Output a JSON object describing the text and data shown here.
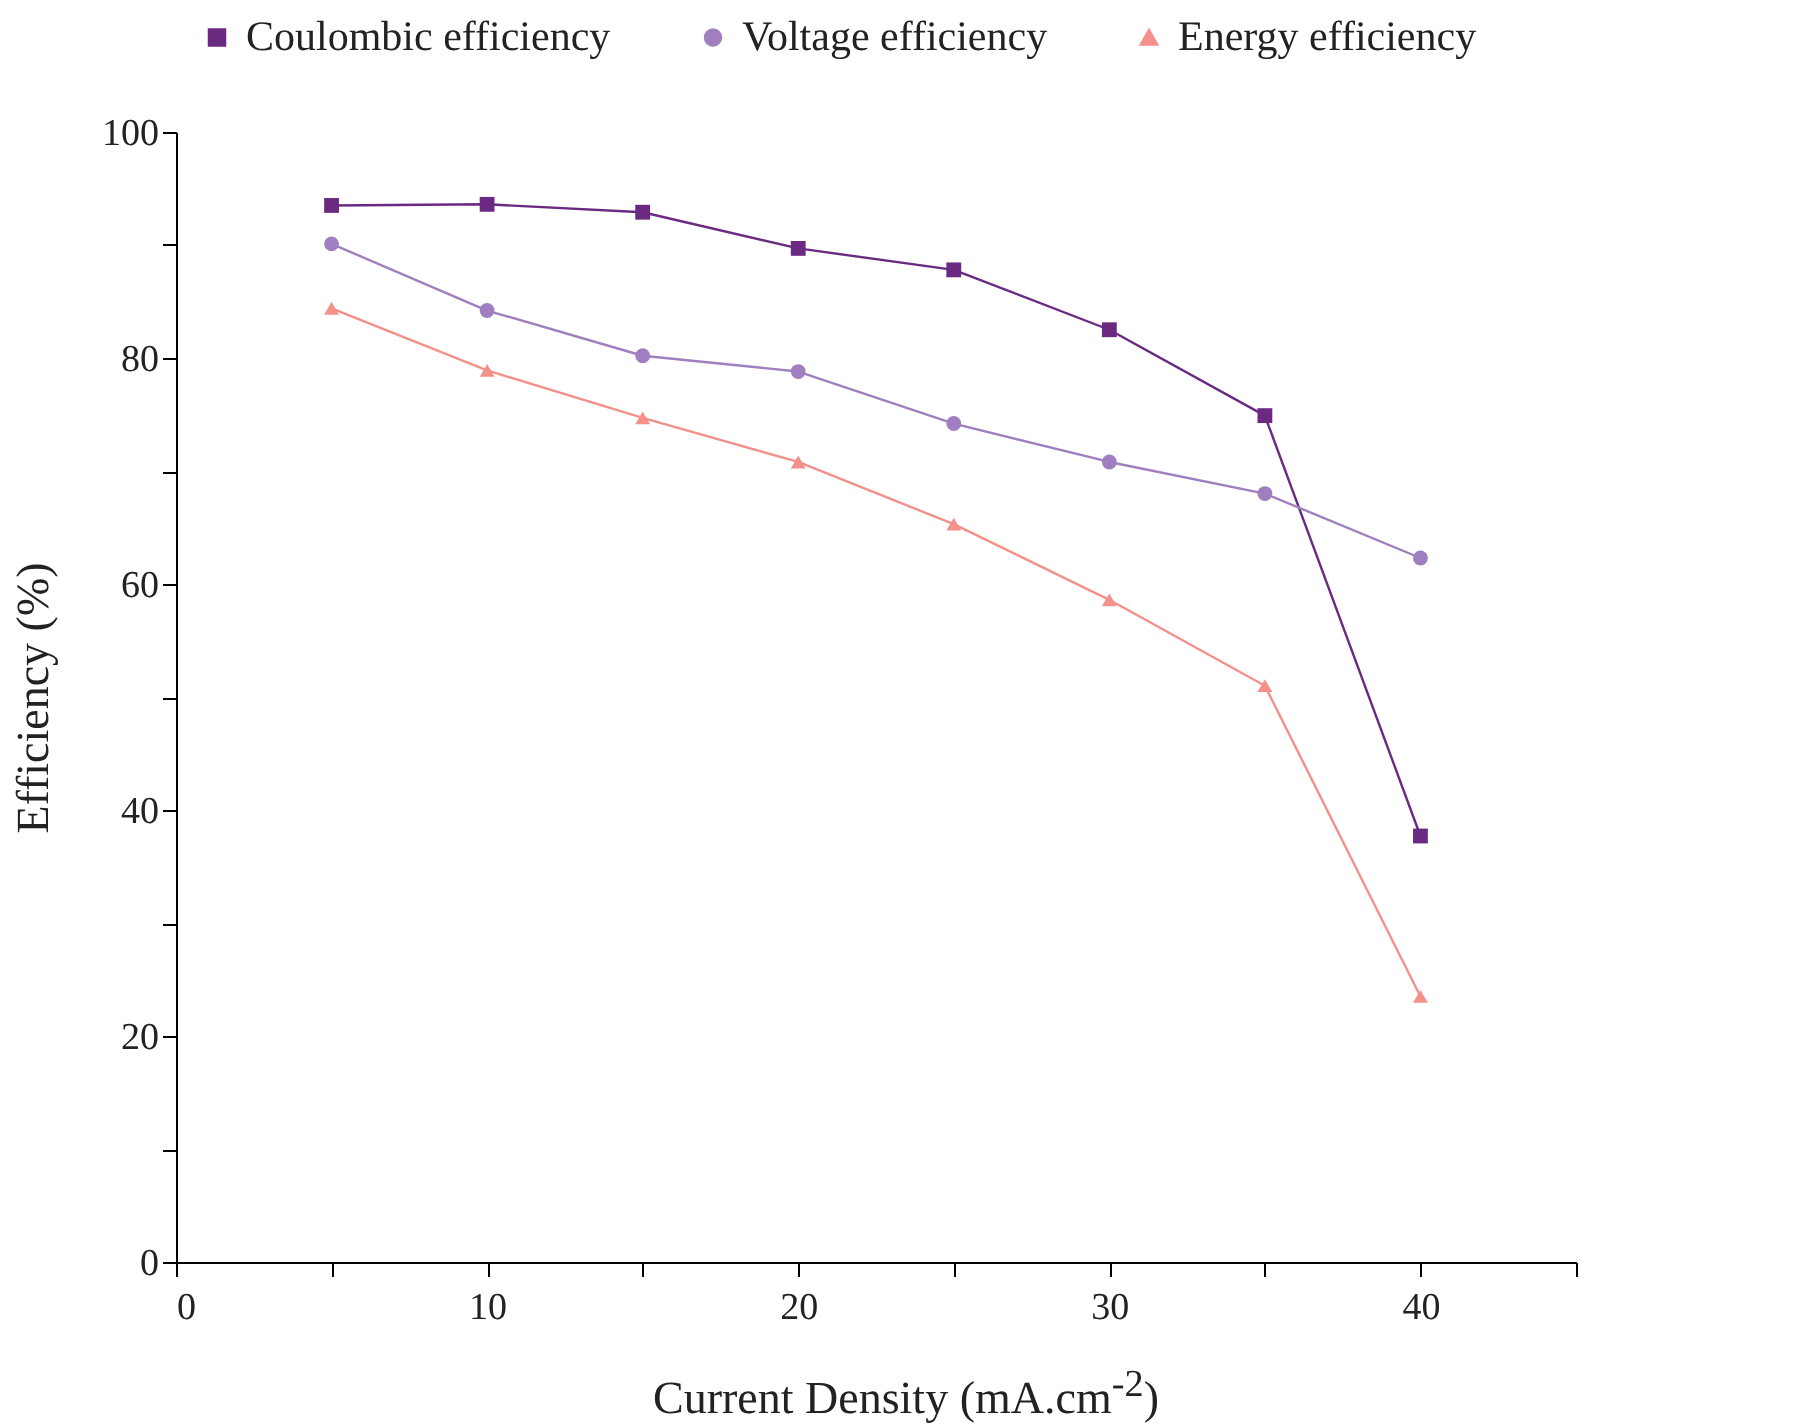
{
  "chart_data": {
    "type": "line",
    "xlabel": "Current Density (mA.cm$^{-2}$)",
    "ylabel": "Efficiency (%)",
    "x": [
      5,
      10,
      15,
      20,
      25,
      30,
      35,
      40
    ],
    "series": [
      {
        "name": "Coulombic efficiency",
        "color": "#6a2a82",
        "marker": "square",
        "values": [
          93.5,
          93.6,
          92.9,
          89.7,
          87.8,
          82.5,
          74.9,
          37.7
        ]
      },
      {
        "name": "Voltage efficiency",
        "color": "#9f7fbf",
        "marker": "circle",
        "values": [
          90.1,
          84.2,
          80.2,
          78.8,
          74.2,
          70.8,
          68.0,
          62.3
        ]
      },
      {
        "name": "Energy efficiency",
        "color": "#f4908a",
        "marker": "triangle",
        "values": [
          84.4,
          78.9,
          74.7,
          70.8,
          65.3,
          58.6,
          51.0,
          23.5
        ]
      }
    ],
    "xlim": [
      0,
      45
    ],
    "ylim": [
      0,
      100
    ],
    "xticks": [
      0,
      {
        "value": 5,
        "label": null
      },
      10,
      {
        "value": 15,
        "label": null
      },
      20,
      {
        "value": 25,
        "label": null
      },
      30,
      {
        "value": 35,
        "label": null
      },
      40,
      {
        "value": 45,
        "label": null
      }
    ],
    "yticks": [
      0,
      {
        "value": 10,
        "label": null
      },
      20,
      {
        "value": 30,
        "label": null
      },
      40,
      {
        "value": 50,
        "label": null
      },
      60,
      {
        "value": 70,
        "label": null
      },
      80,
      {
        "value": 90,
        "label": null
      },
      100
    ],
    "grid": false,
    "legend": "top"
  }
}
